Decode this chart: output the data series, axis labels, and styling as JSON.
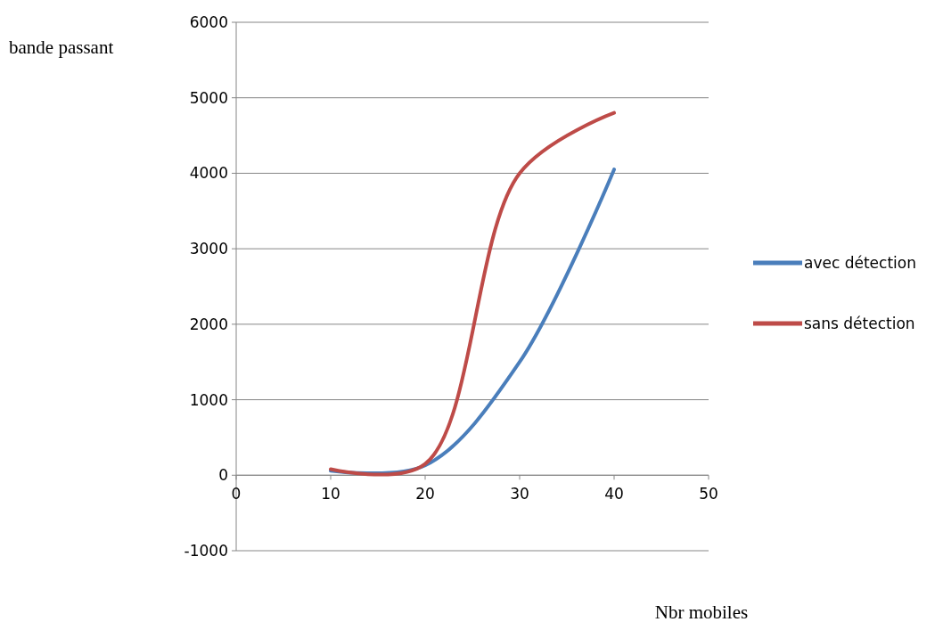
{
  "chart_data": {
    "type": "line",
    "xlabel": "Nbr mobiles",
    "ylabel": "bande passant",
    "x": [
      10,
      20,
      30,
      40
    ],
    "series": [
      {
        "name": "avec détection",
        "color": "#4a7ebb",
        "values": [
          60,
          130,
          1500,
          4050
        ]
      },
      {
        "name": "sans détection",
        "color": "#be4b48",
        "values": [
          80,
          150,
          4000,
          4800
        ]
      }
    ],
    "xlim": [
      0,
      50
    ],
    "xticks": [
      0,
      10,
      20,
      30,
      40,
      50
    ],
    "ylim": [
      -1000,
      6000
    ],
    "yticks": [
      -1000,
      0,
      1000,
      2000,
      3000,
      4000,
      5000,
      6000
    ],
    "grid": "y",
    "legend": "right",
    "marker": "none",
    "line_style": "solid"
  }
}
